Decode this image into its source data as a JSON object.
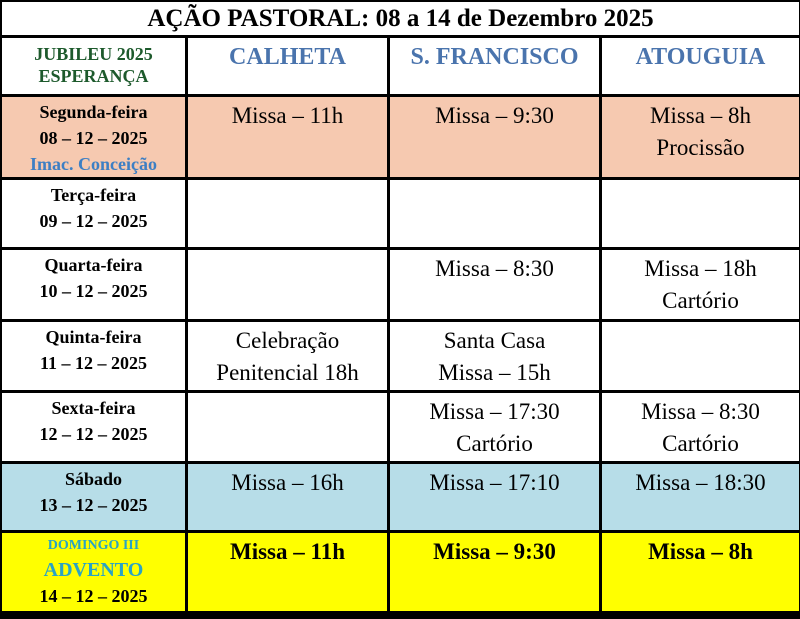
{
  "title": "AÇÃO PASTORAL: 08 a 14 de Dezembro 2025",
  "header": {
    "corner": [
      "JUBILEU 2025",
      "ESPERANÇA"
    ],
    "columns": [
      "CALHETA",
      "S. FRANCISCO",
      "ATOUGUIA"
    ]
  },
  "rows": [
    {
      "day": [
        "Segunda-feira",
        "08 – 12 – 2025",
        "Imac. Conceição"
      ],
      "cells": [
        [
          "Missa – 11h"
        ],
        [
          "Missa – 9:30"
        ],
        [
          "Missa – 8h",
          "Procissão"
        ]
      ]
    },
    {
      "day": [
        "Terça-feira",
        "09 – 12 – 2025"
      ],
      "cells": [
        [],
        [],
        []
      ]
    },
    {
      "day": [
        "Quarta-feira",
        "10 – 12 – 2025"
      ],
      "cells": [
        [],
        [
          "Missa – 8:30"
        ],
        [
          "Missa – 18h",
          "Cartório"
        ]
      ]
    },
    {
      "day": [
        "Quinta-feira",
        "11 – 12 – 2025"
      ],
      "cells": [
        [
          "Celebração",
          "Penitencial  18h"
        ],
        [
          "Santa Casa",
          "Missa – 15h"
        ],
        []
      ]
    },
    {
      "day": [
        "Sexta-feira",
        "12 – 12 – 2025"
      ],
      "cells": [
        [],
        [
          "Missa – 17:30",
          "Cartório"
        ],
        [
          "Missa – 8:30",
          "Cartório"
        ]
      ]
    },
    {
      "day": [
        "Sábado",
        "13 – 12 – 2025"
      ],
      "cells": [
        [
          "Missa – 16h"
        ],
        [
          "Missa – 17:10"
        ],
        [
          "Missa – 18:30"
        ]
      ]
    },
    {
      "day": [
        "DOMINGO III",
        "ADVENTO",
        "14 – 12 – 2025"
      ],
      "cells": [
        [
          "Missa – 11h"
        ],
        [
          "Missa – 9:30"
        ],
        [
          "Missa – 8h"
        ]
      ]
    }
  ]
}
